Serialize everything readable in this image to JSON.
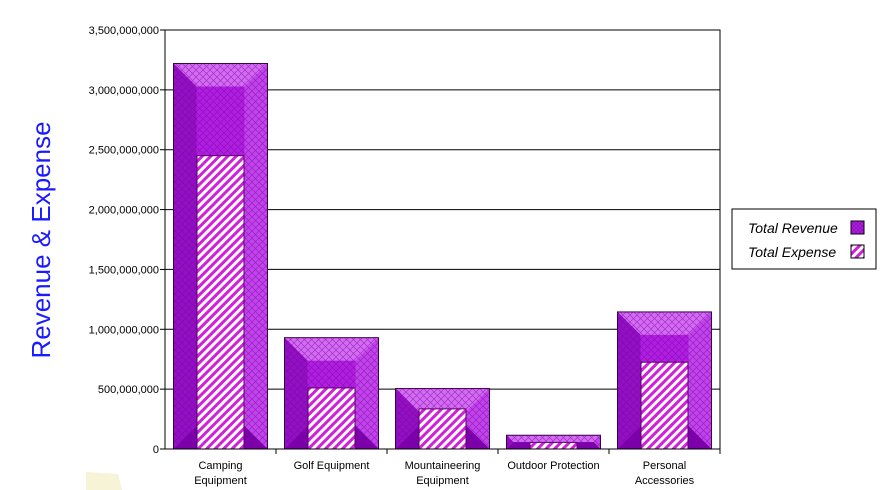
{
  "chart_data": {
    "type": "bar",
    "ylabel": "Revenue & Expense",
    "ylim": [
      0,
      3500000000
    ],
    "yticks": [
      0,
      500000000,
      1000000000,
      1500000000,
      2000000000,
      2500000000,
      3000000000,
      3500000000
    ],
    "ytick_labels": [
      "0",
      "500,000,000",
      "1,000,000,000",
      "1,500,000,000",
      "2,000,000,000",
      "2,500,000,000",
      "3,000,000,000",
      "3,500,000,000"
    ],
    "categories": [
      [
        "Camping",
        "Equipment"
      ],
      [
        "Golf Equipment"
      ],
      [
        "Mountaineering",
        "Equipment"
      ],
      [
        "Outdoor Protection"
      ],
      [
        "Personal",
        "Accessories"
      ]
    ],
    "series": [
      {
        "name": "Total Revenue",
        "values": [
          3220000000,
          930000000,
          505000000,
          115000000,
          1145000000
        ]
      },
      {
        "name": "Total Expense",
        "values": [
          2450000000,
          510000000,
          335000000,
          55000000,
          725000000
        ]
      }
    ],
    "grid": true,
    "legend_position": "right",
    "colors": {
      "revenue_dark": "#a010c8",
      "revenue_light": "#d46cf2",
      "expense_stripe": "#d020d8",
      "axis_title": "#1a1aff",
      "grid": "#000000"
    }
  }
}
